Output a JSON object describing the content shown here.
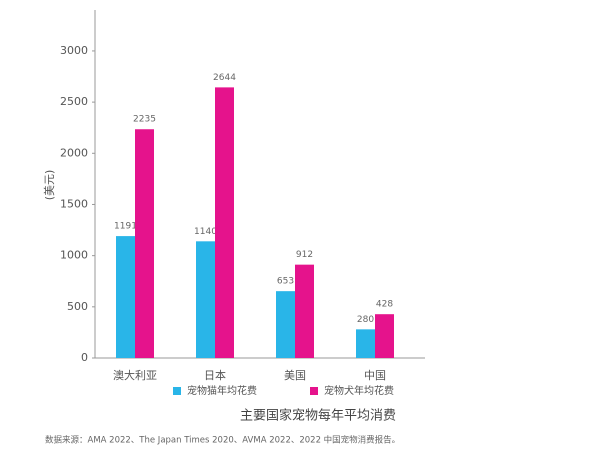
{
  "chart_data": {
    "type": "bar",
    "title": "主要国家宠物每年平均消费",
    "y_label": "(美元)",
    "source": "数据来源：AMA 2022、The Japan Times 2020、AVMA 2022、2022 中国宠物消费报告。",
    "categories": [
      "澳大利亚",
      "日本",
      "美国",
      "中国"
    ],
    "series": [
      {
        "name": "宠物猫年均花费",
        "color": "#29b5e8",
        "values": [
          1191,
          1140,
          653,
          280
        ]
      },
      {
        "name": "宠物犬年均花费",
        "color": "#e5138c",
        "values": [
          2235,
          2644,
          912,
          428
        ]
      }
    ],
    "ylim": [
      0,
      3400
    ],
    "yticks": [
      0,
      500,
      1000,
      1500,
      2000,
      2500,
      3000
    ],
    "grid": false
  }
}
